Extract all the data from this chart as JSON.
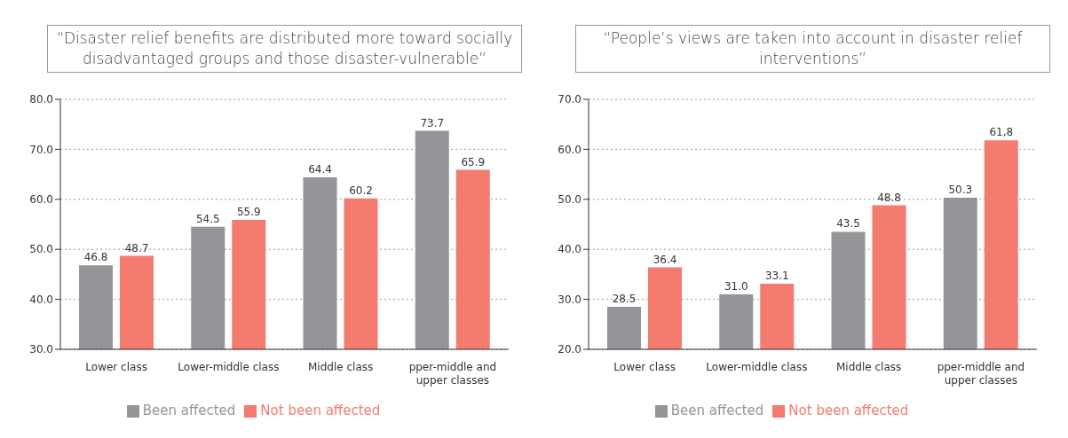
{
  "chart_data": [
    {
      "type": "bar",
      "title": "“Disaster relief benefits are distributed more toward socially disadvantaged groups and those disaster-vulnerable”",
      "categories": [
        "Lower class",
        "Lower-middle class",
        "Middle class",
        "pper-middle and upper classes"
      ],
      "series": [
        {
          "name": "Been affected",
          "color": "#939598",
          "values": [
            46.8,
            54.5,
            64.4,
            73.7
          ],
          "value_labels": [
            "46.8",
            "54.5",
            "64.4",
            "73.7"
          ]
        },
        {
          "name": "Not been affected",
          "color": "#f37b70",
          "values": [
            48.7,
            55.9,
            60.2,
            65.9
          ],
          "value_labels": [
            "48.7",
            "55.9",
            "60.2",
            "65.9"
          ]
        }
      ],
      "ylim": [
        30,
        80
      ],
      "yticks": [
        {
          "value": 30,
          "label": "30.0"
        },
        {
          "value": 40,
          "label": "40.0"
        },
        {
          "value": 50,
          "label": "50.0"
        },
        {
          "value": 60,
          "label": "60.0"
        },
        {
          "value": 70,
          "label": "70.0"
        },
        {
          "value": 80,
          "label": "80.0"
        }
      ],
      "grid": "y",
      "legend": "bottom"
    },
    {
      "type": "bar",
      "title": "“People’s views are taken into account in disaster relief interventions”",
      "categories": [
        "Lower class",
        "Lower-middle class",
        "Middle class",
        "pper-middle and upper classes"
      ],
      "series": [
        {
          "name": "Been affected",
          "color": "#939598",
          "values": [
            28.5,
            31.0,
            43.5,
            50.3
          ],
          "value_labels": [
            "28.5",
            "31.0",
            "43.5",
            "50.3"
          ]
        },
        {
          "name": "Not been affected",
          "color": "#f37b70",
          "values": [
            36.4,
            33.1,
            48.8,
            61.8
          ],
          "value_labels": [
            "36.4",
            "33.1",
            "48.8",
            "61,8"
          ]
        }
      ],
      "ylim": [
        20,
        70
      ],
      "yticks": [
        {
          "value": 20,
          "label": "20.0"
        },
        {
          "value": 30,
          "label": "30.0"
        },
        {
          "value": 40,
          "label": "40.0"
        },
        {
          "value": 50,
          "label": "50.0"
        },
        {
          "value": 60,
          "label": "60.0"
        },
        {
          "value": 70,
          "label": "70.0"
        }
      ],
      "grid": "y",
      "legend": "bottom"
    }
  ]
}
